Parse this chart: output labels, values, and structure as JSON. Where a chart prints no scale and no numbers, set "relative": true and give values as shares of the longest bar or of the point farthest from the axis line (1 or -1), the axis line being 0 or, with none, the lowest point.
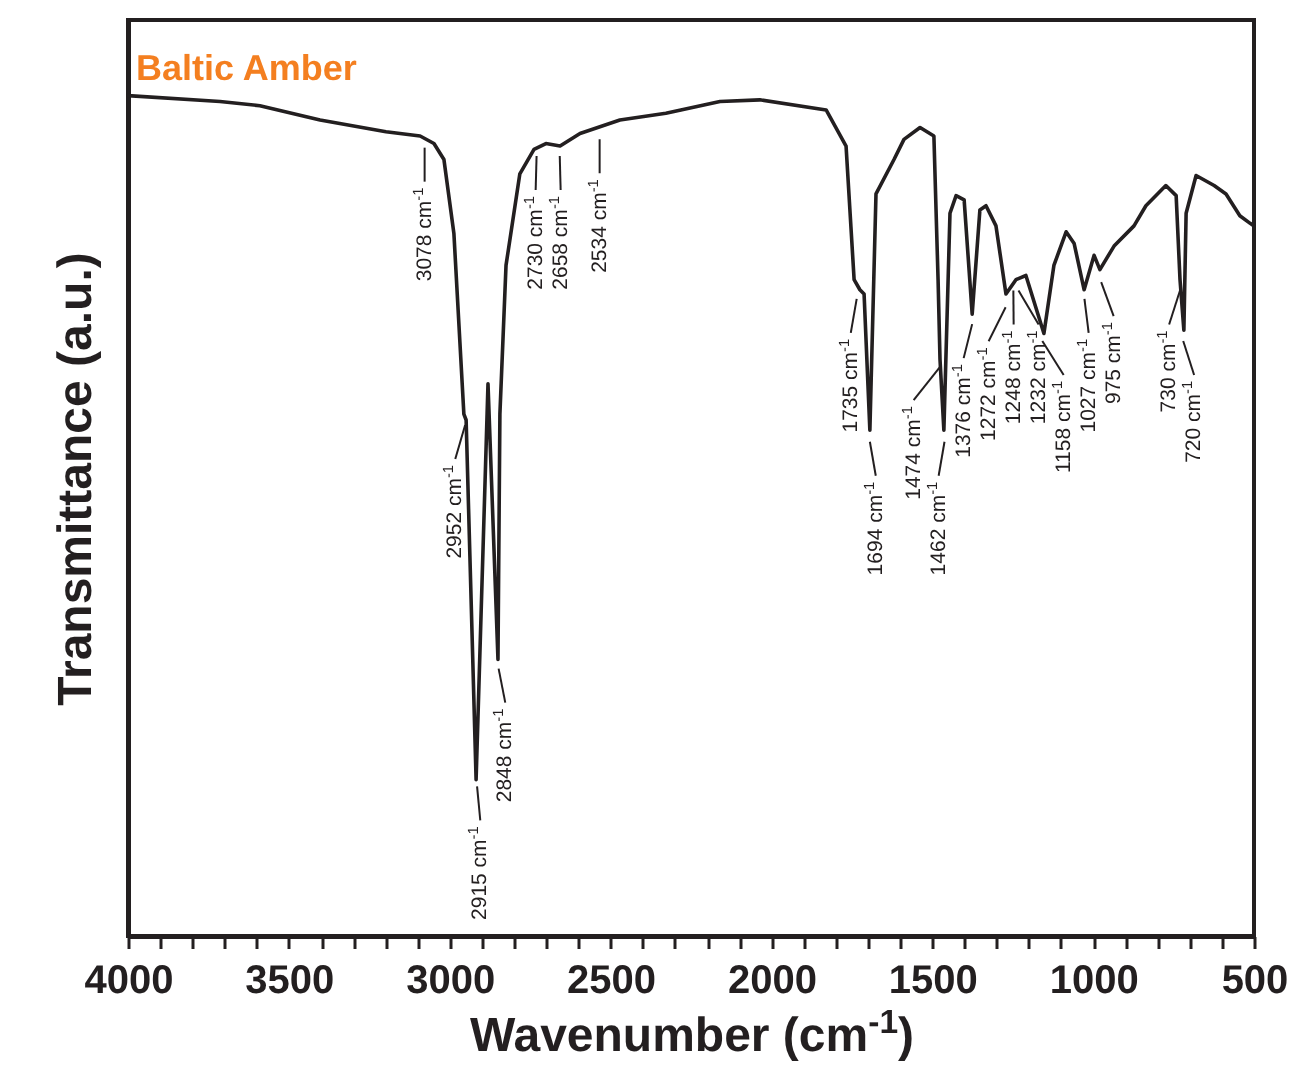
{
  "chart_data": {
    "type": "line",
    "title": "Baltic Amber",
    "xlabel": "Wavenumber (cm$^{-1}$)",
    "ylabel": "Transmittance (a.u.)",
    "relative": true,
    "legend": false,
    "grid": false,
    "xlim": [
      4000,
      500
    ],
    "xticks": [
      4000,
      {
        "value": 3900,
        "label": null
      },
      {
        "value": 3800,
        "label": null
      },
      {
        "value": 3700,
        "label": null
      },
      {
        "value": 3600,
        "label": null
      },
      3500,
      {
        "value": 3400,
        "label": null
      },
      {
        "value": 3300,
        "label": null
      },
      {
        "value": 3200,
        "label": null
      },
      {
        "value": 3100,
        "label": null
      },
      3000,
      {
        "value": 2900,
        "label": null
      },
      {
        "value": 2800,
        "label": null
      },
      {
        "value": 2700,
        "label": null
      },
      {
        "value": 2600,
        "label": null
      },
      2500,
      {
        "value": 2400,
        "label": null
      },
      {
        "value": 2300,
        "label": null
      },
      {
        "value": 2200,
        "label": null
      },
      {
        "value": 2100,
        "label": null
      },
      2000,
      {
        "value": 1900,
        "label": null
      },
      {
        "value": 1800,
        "label": null
      },
      {
        "value": 1700,
        "label": null
      },
      {
        "value": 1600,
        "label": null
      },
      1500,
      {
        "value": 1400,
        "label": null
      },
      {
        "value": 1300,
        "label": null
      },
      {
        "value": 1200,
        "label": null
      },
      {
        "value": 1100,
        "label": null
      },
      1000,
      {
        "value": 900,
        "label": null
      },
      {
        "value": 800,
        "label": null
      },
      {
        "value": 700,
        "label": null
      },
      {
        "value": 600,
        "label": null
      },
      500
    ],
    "x": [
      4000,
      3714,
      3590,
      3403,
      3198,
      3092,
      3049,
      3018,
      2987,
      2956,
      2949,
      2918,
      2881,
      2850,
      2844,
      2825,
      2782,
      2738,
      2701,
      2657,
      2595,
      2471,
      2328,
      2160,
      2036,
      1830,
      1768,
      1743,
      1725,
      1712,
      1694,
      1675,
      1619,
      1588,
      1538,
      1495,
      1482,
      1476,
      1464,
      1445,
      1426,
      1401,
      1376,
      1352,
      1333,
      1302,
      1271,
      1240,
      1209,
      1153,
      1122,
      1084,
      1059,
      1028,
      997,
      979,
      935,
      873,
      836,
      774,
      742,
      730,
      718,
      711,
      680,
      624,
      587,
      544,
      512,
      500
    ],
    "series": [
      {
        "color": "#231f20",
        "values": [
          1.0,
          0.993,
          0.988,
          0.971,
          0.957,
          0.952,
          0.943,
          0.924,
          0.836,
          0.621,
          0.614,
          0.186,
          0.657,
          0.329,
          0.621,
          0.798,
          0.907,
          0.936,
          0.943,
          0.94,
          0.955,
          0.971,
          0.979,
          0.993,
          0.995,
          0.983,
          0.94,
          0.781,
          0.769,
          0.764,
          0.602,
          0.883,
          0.924,
          0.948,
          0.962,
          0.952,
          0.781,
          0.686,
          0.602,
          0.86,
          0.881,
          0.876,
          0.74,
          0.864,
          0.869,
          0.845,
          0.764,
          0.781,
          0.786,
          0.717,
          0.798,
          0.838,
          0.824,
          0.769,
          0.81,
          0.793,
          0.821,
          0.845,
          0.869,
          0.893,
          0.881,
          0.781,
          0.721,
          0.86,
          0.905,
          0.893,
          0.883,
          0.857,
          0.848,
          0.845
        ]
      }
    ],
    "annotations": [
      {
        "text": "3078 cm$^{-1}$",
        "x": 3078,
        "y": 0.95
      },
      {
        "text": "2952 cm$^{-1}$",
        "x": 2952,
        "y": 0.62
      },
      {
        "text": "2915 cm$^{-1}$",
        "x": 2915,
        "y": 0.19
      },
      {
        "text": "2848 cm$^{-1}$",
        "x": 2848,
        "y": 0.33
      },
      {
        "text": "2730 cm$^{-1}$",
        "x": 2730,
        "y": 0.94
      },
      {
        "text": "2658 cm$^{-1}$",
        "x": 2658,
        "y": 0.94
      },
      {
        "text": "2534 cm$^{-1}$",
        "x": 2534,
        "y": 0.96
      },
      {
        "text": "1735 cm$^{-1}$",
        "x": 1735,
        "y": 0.77
      },
      {
        "text": "1694 cm$^{-1}$",
        "x": 1694,
        "y": 0.6
      },
      {
        "text": "1474 cm$^{-1}$",
        "x": 1474,
        "y": 0.69
      },
      {
        "text": "1462 cm$^{-1}$",
        "x": 1462,
        "y": 0.6
      },
      {
        "text": "1376 cm$^{-1}$",
        "x": 1376,
        "y": 0.74
      },
      {
        "text": "1272 cm$^{-1}$",
        "x": 1272,
        "y": 0.76
      },
      {
        "text": "1248 cm$^{-1}$",
        "x": 1248,
        "y": 0.78
      },
      {
        "text": "1232 cm$^{-1}$",
        "x": 1232,
        "y": 0.78
      },
      {
        "text": "1158 cm$^{-1}$",
        "x": 1158,
        "y": 0.72
      },
      {
        "text": "1027 cm$^{-1}$",
        "x": 1027,
        "y": 0.77
      },
      {
        "text": "975 cm$^{-1}$",
        "x": 975,
        "y": 0.79
      },
      {
        "text": "730 cm$^{-1}$",
        "x": 730,
        "y": 0.78
      },
      {
        "text": "720 cm$^{-1}$",
        "x": 720,
        "y": 0.72
      }
    ]
  }
}
